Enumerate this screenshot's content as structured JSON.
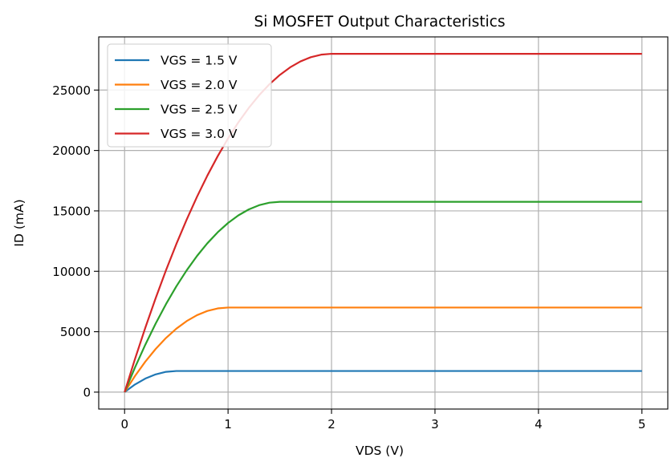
{
  "chart_data": {
    "type": "line",
    "title": "Si MOSFET Output Characteristics",
    "xlabel": "VDS (V)",
    "ylabel": "ID (mA)",
    "xlim": [
      -0.25,
      5.25
    ],
    "ylim": [
      -1400,
      29400
    ],
    "xticks": [
      0,
      1,
      2,
      3,
      4,
      5
    ],
    "yticks": [
      0,
      5000,
      10000,
      15000,
      20000,
      25000
    ],
    "grid": true,
    "legend_position": "top-left",
    "x": [
      0,
      0.1,
      0.2,
      0.3,
      0.4,
      0.5,
      0.6,
      0.7,
      0.8,
      0.9,
      1.0,
      1.1,
      1.2,
      1.3,
      1.4,
      1.5,
      1.6,
      1.7,
      1.8,
      1.9,
      2.0,
      2.5,
      3.0,
      3.5,
      4.0,
      4.5,
      5.0
    ],
    "series": [
      {
        "name": "VGS = 1.5 V",
        "color": "#1f77b4",
        "values": [
          0,
          630,
          1120,
          1470,
          1680,
          1750,
          1750,
          1750,
          1750,
          1750,
          1750,
          1750,
          1750,
          1750,
          1750,
          1750,
          1750,
          1750,
          1750,
          1750,
          1750,
          1750,
          1750,
          1750,
          1750,
          1750,
          1750
        ]
      },
      {
        "name": "VGS = 2.0 V",
        "color": "#ff7f0e",
        "values": [
          0,
          1330,
          2520,
          3570,
          4480,
          5250,
          5880,
          6370,
          6720,
          6930,
          7000,
          7000,
          7000,
          7000,
          7000,
          7000,
          7000,
          7000,
          7000,
          7000,
          7000,
          7000,
          7000,
          7000,
          7000,
          7000,
          7000
        ]
      },
      {
        "name": "VGS = 2.5 V",
        "color": "#2ca02c",
        "values": [
          0,
          2030,
          3920,
          5670,
          7280,
          8750,
          10080,
          11270,
          12320,
          13230,
          14000,
          14630,
          15120,
          15470,
          15680,
          15750,
          15750,
          15750,
          15750,
          15750,
          15750,
          15750,
          15750,
          15750,
          15750,
          15750,
          15750
        ]
      },
      {
        "name": "VGS = 3.0 V",
        "color": "#d62728",
        "values": [
          0,
          2730,
          5320,
          7770,
          10080,
          12250,
          14280,
          16170,
          17920,
          19530,
          21000,
          22330,
          23520,
          24570,
          25480,
          26250,
          26880,
          27370,
          27720,
          27930,
          28000,
          28000,
          28000,
          28000,
          28000,
          28000,
          28000
        ]
      }
    ]
  }
}
